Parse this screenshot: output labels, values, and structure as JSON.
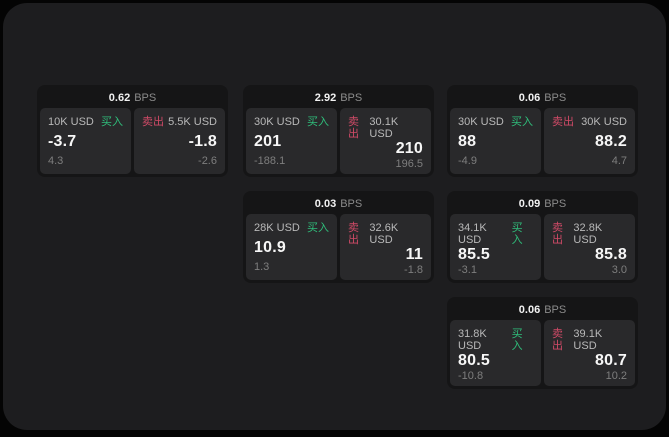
{
  "labels": {
    "bps_unit": "BPS",
    "buy": "买入",
    "sell": "卖出"
  },
  "colors": {
    "page_bg": "#040404",
    "window_bg": "#1d1d1f",
    "card_bg": "#151516",
    "panel_bg": "#29292b",
    "buy_green": "#2fbe7b",
    "sell_red": "#d04a67"
  },
  "cards": [
    {
      "column": 1,
      "bps": "0.62",
      "buy": {
        "amount": "10K USD",
        "value": "-3.7",
        "sub": "4.3"
      },
      "sell": {
        "amount": "5.5K USD",
        "value": "-1.8",
        "sub": "-2.6"
      }
    },
    {
      "column": 2,
      "bps": "2.92",
      "buy": {
        "amount": "30K USD",
        "value": "201",
        "sub": "-188.1"
      },
      "sell": {
        "amount": "30.1K USD",
        "value": "210",
        "sub": "196.5"
      }
    },
    {
      "column": 2,
      "bps": "0.03",
      "buy": {
        "amount": "28K USD",
        "value": "10.9",
        "sub": "1.3"
      },
      "sell": {
        "amount": "32.6K USD",
        "value": "11",
        "sub": "-1.8"
      }
    },
    {
      "column": 3,
      "bps": "0.06",
      "buy": {
        "amount": "30K USD",
        "value": "88",
        "sub": "-4.9"
      },
      "sell": {
        "amount": "30K USD",
        "value": "88.2",
        "sub": "4.7"
      }
    },
    {
      "column": 3,
      "bps": "0.09",
      "buy": {
        "amount": "34.1K USD",
        "value": "85.5",
        "sub": "-3.1"
      },
      "sell": {
        "amount": "32.8K USD",
        "value": "85.8",
        "sub": "3.0"
      }
    },
    {
      "column": 3,
      "bps": "0.06",
      "buy": {
        "amount": "31.8K USD",
        "value": "80.5",
        "sub": "-10.8"
      },
      "sell": {
        "amount": "39.1K USD",
        "value": "80.7",
        "sub": "10.2"
      }
    }
  ]
}
